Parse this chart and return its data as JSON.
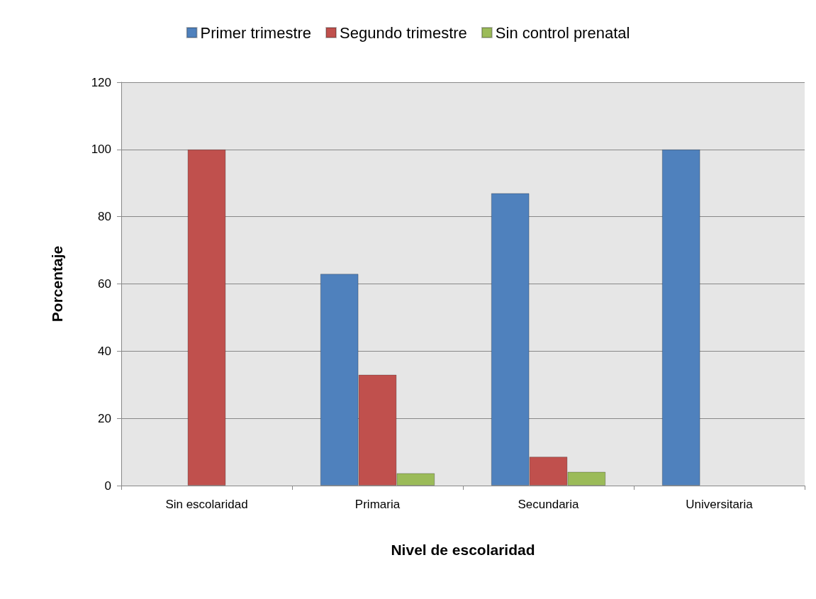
{
  "chart_data": {
    "type": "bar",
    "xlabel": "Nivel de escolaridad",
    "ylabel": "Porcentaje",
    "categories": [
      "Sin escolaridad",
      "Primaria",
      "Secundaria",
      "Universitaria"
    ],
    "series": [
      {
        "name": "Primer trimestre",
        "color": "#4f81bd",
        "values": [
          null,
          63,
          87,
          100
        ]
      },
      {
        "name": "Segundo trimestre",
        "color": "#c0504d",
        "values": [
          100,
          33,
          8.6,
          null
        ]
      },
      {
        "name": "Sin control prenatal",
        "color": "#9bbb59",
        "values": [
          null,
          3.7,
          4.1,
          null
        ]
      }
    ],
    "ylim": [
      0,
      120
    ],
    "yticks": [
      0,
      20,
      40,
      60,
      80,
      100,
      120
    ],
    "grid": "y",
    "legend": "top"
  }
}
